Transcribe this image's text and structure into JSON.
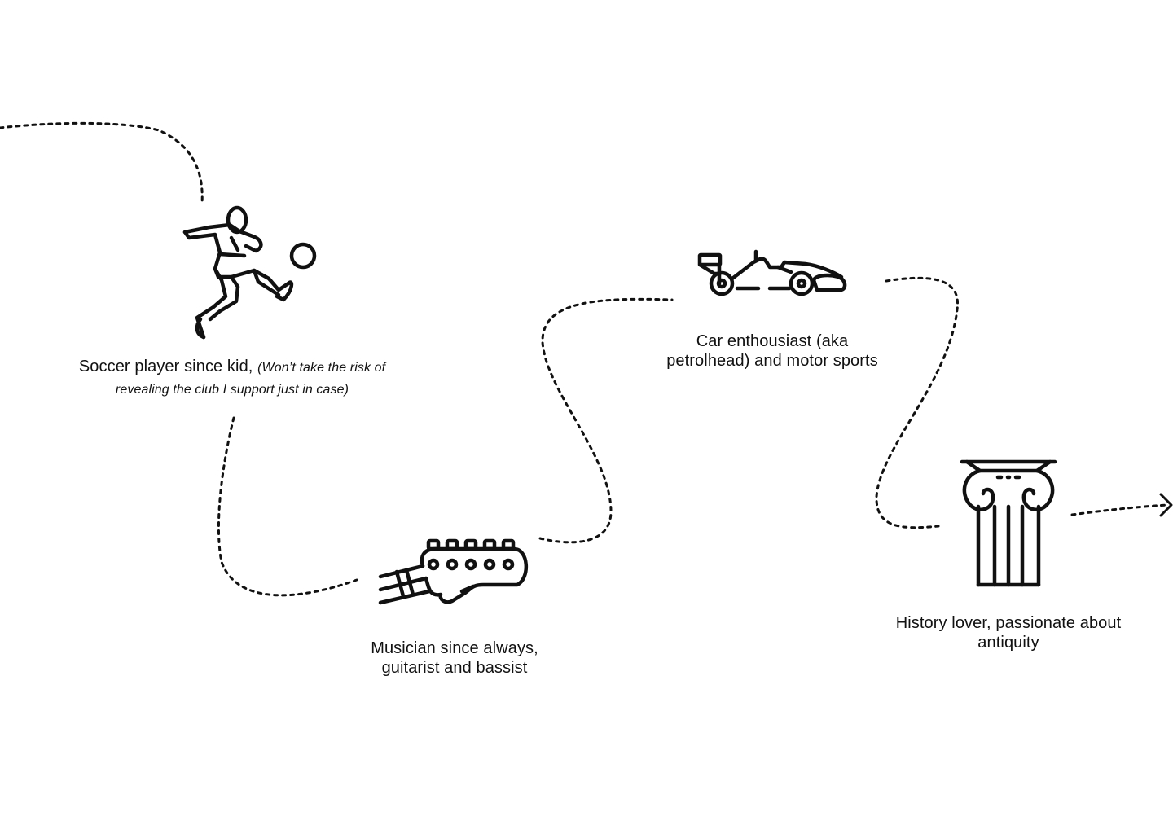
{
  "items": [
    {
      "id": "soccer",
      "text": "Soccer player since kid,",
      "note": "(Won’t take the risk of revealing the club I support just in case)",
      "icon": "soccer-player-icon"
    },
    {
      "id": "music",
      "text": "Musician since always, guitarist and bassist",
      "icon": "guitar-headstock-icon"
    },
    {
      "id": "car",
      "text": "Car enthousiast (aka petrolhead) and motor sports",
      "icon": "race-car-icon"
    },
    {
      "id": "history",
      "text": "History lover, passionate about antiquity",
      "icon": "ionic-column-icon"
    }
  ],
  "colors": {
    "background": "#ffffff",
    "ink": "#111111"
  }
}
